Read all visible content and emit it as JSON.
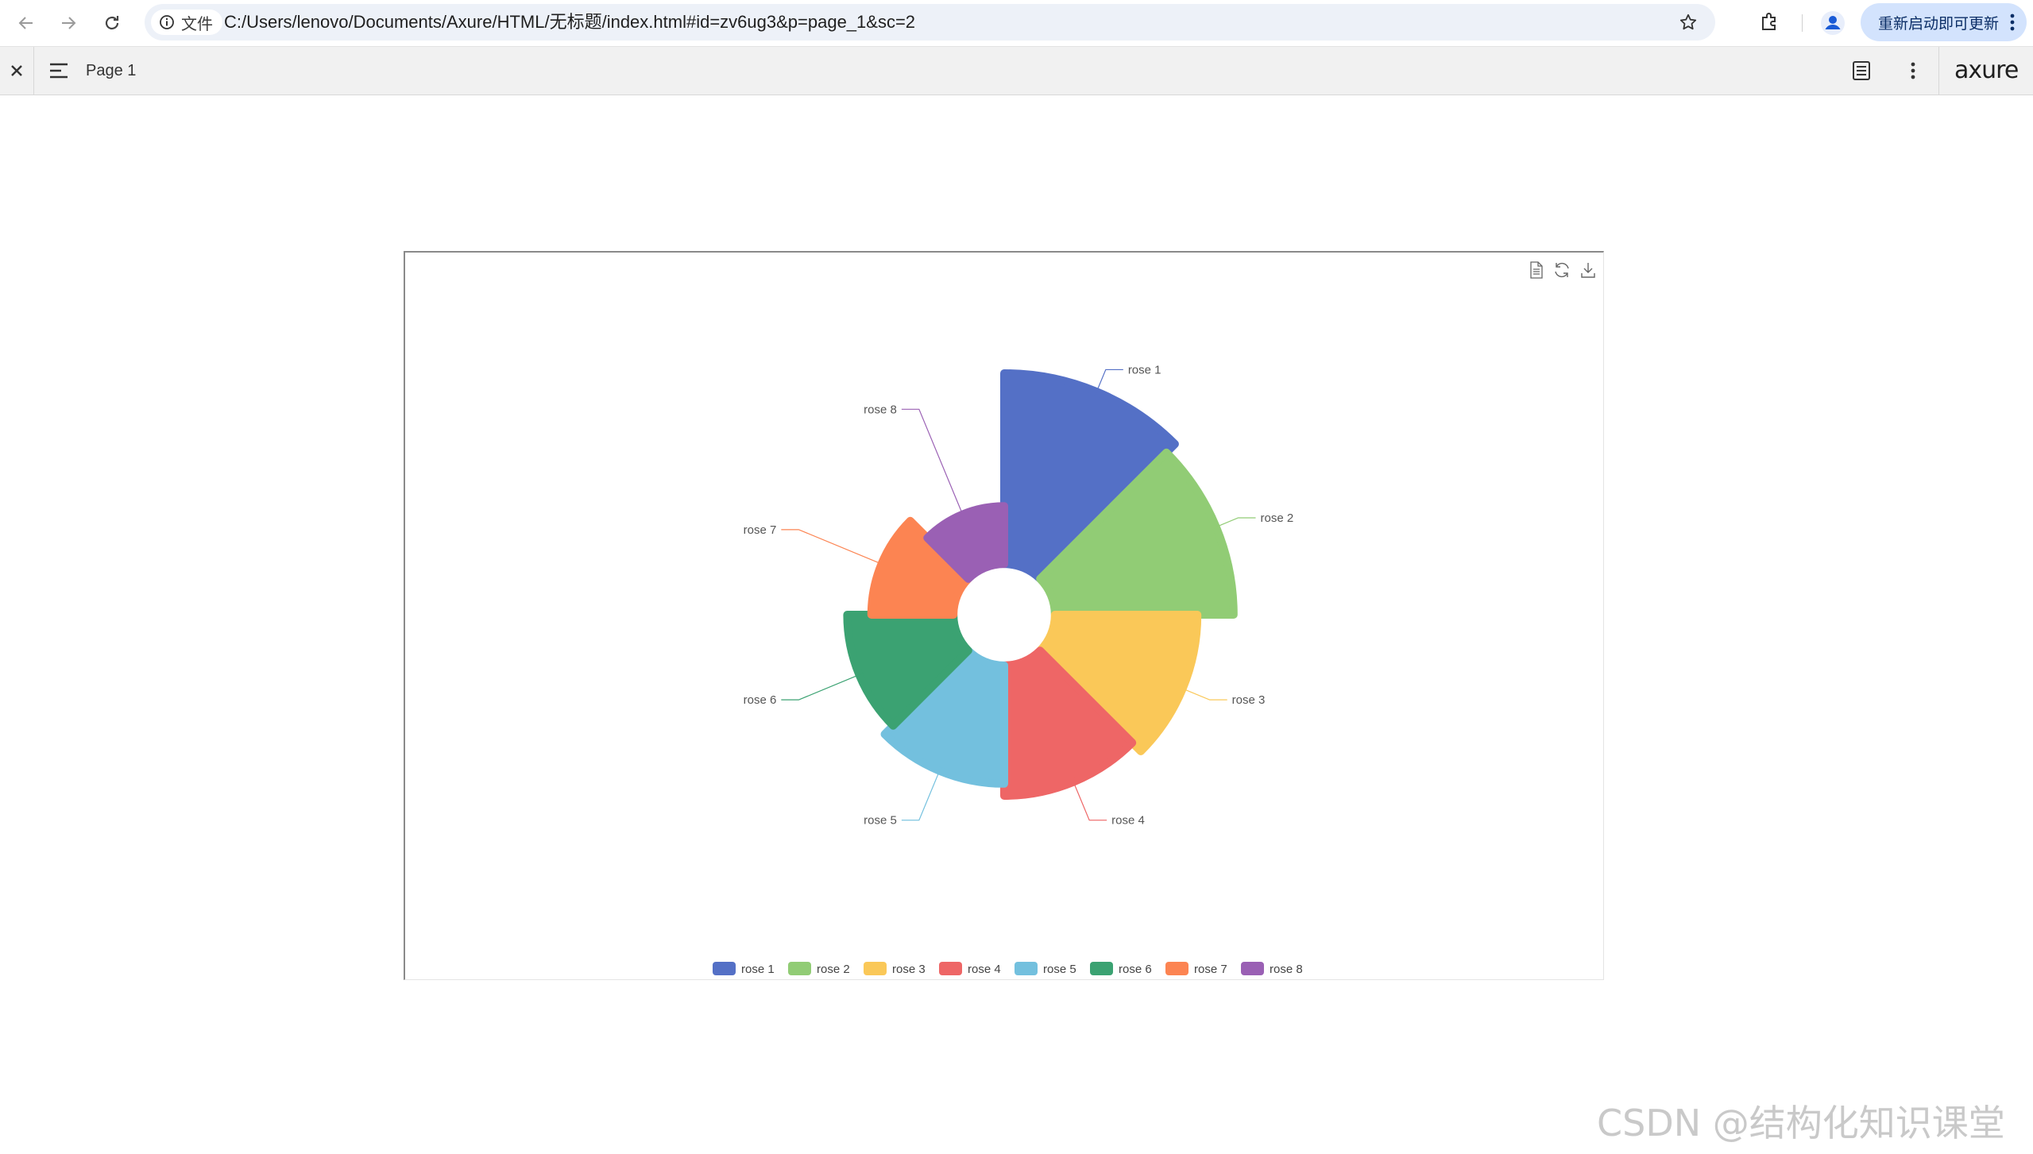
{
  "browser": {
    "chip_label": "文件",
    "url": "C:/Users/lenovo/Documents/Axure/HTML/无标题/index.html#id=zv6ug3&p=page_1&sc=2",
    "update_button": "重新启动即可更新",
    "icons": [
      "back-arrow-icon",
      "forward-arrow-icon",
      "reload-icon",
      "info-icon",
      "star-icon",
      "extensions-icon",
      "profile-icon",
      "kebab-menu-icon"
    ]
  },
  "axure_toolbar": {
    "page_label": "Page 1",
    "logo": "axure",
    "icons": [
      "close-icon",
      "hamburger-menu-icon",
      "notes-icon",
      "more-options-icon"
    ]
  },
  "chart_toolbox": {
    "icons": [
      "data-view-icon",
      "restore-icon",
      "save-image-icon"
    ]
  },
  "chart_data": {
    "type": "pie",
    "rose_type": "radius",
    "inner_radius_ratio": 0.21,
    "start_angle_deg": 90,
    "clockwise": true,
    "rounded_corners": true,
    "legend_position": "bottom",
    "categories": [
      "rose 1",
      "rose 2",
      "rose 3",
      "rose 4",
      "rose 5",
      "rose 6",
      "rose 7",
      "rose 8"
    ],
    "values": [
      40,
      38,
      32,
      30,
      28,
      26,
      22,
      18
    ],
    "colors": [
      "#5470c6",
      "#91cc75",
      "#fac858",
      "#ee6666",
      "#73c0de",
      "#3ba272",
      "#fc8452",
      "#9a60b4"
    ]
  },
  "watermark": "CSDN @结构化知识课堂"
}
